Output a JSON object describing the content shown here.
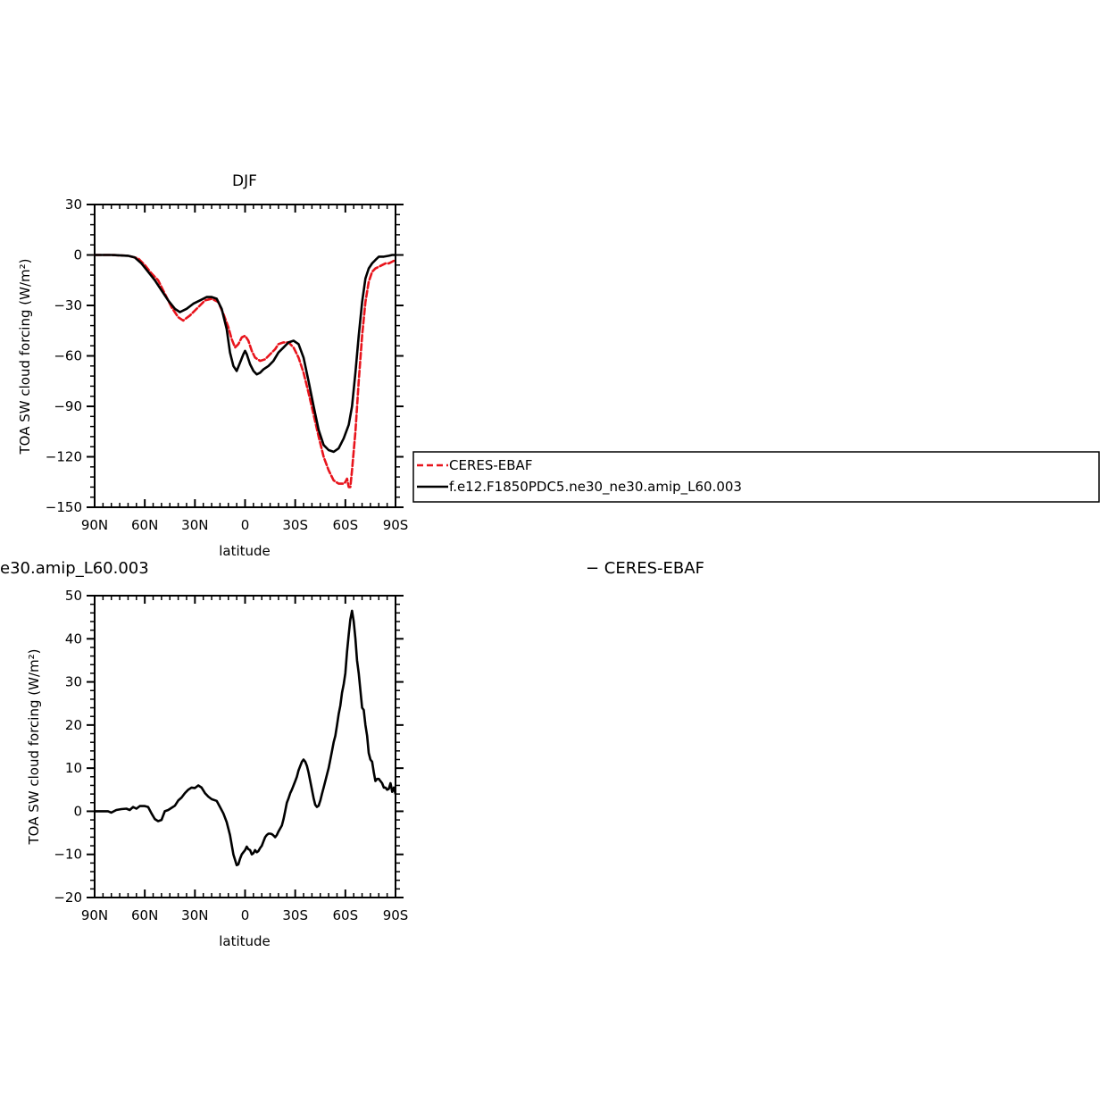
{
  "chart_data": [
    {
      "type": "line",
      "title": "DJF",
      "xlabel": "latitude",
      "ylabel": "TOA SW cloud forcing (W/m²)",
      "xlim": [
        -90,
        90
      ],
      "ylim": [
        -150,
        30
      ],
      "x_ticks": [
        -90,
        -60,
        -30,
        0,
        30,
        60,
        90
      ],
      "x_tick_labels": [
        "90N",
        "60N",
        "30N",
        "0",
        "30S",
        "60S",
        "90S"
      ],
      "y_ticks": [
        -150,
        -120,
        -90,
        -60,
        -30,
        0,
        30
      ],
      "y_tick_labels": [
        "−150",
        "−120",
        "−90",
        "−60",
        "−30",
        "0",
        "30"
      ],
      "legend": {
        "placement": "right"
      },
      "series": [
        {
          "name": "CERES-EBAF",
          "color": "#e8141c",
          "dash": "dashed",
          "points": [
            [
              -90,
              0
            ],
            [
              -80,
              0
            ],
            [
              -70,
              -0.5
            ],
            [
              -64,
              -2
            ],
            [
              -60,
              -6
            ],
            [
              -56,
              -11
            ],
            [
              -52,
              -15
            ],
            [
              -48,
              -23
            ],
            [
              -44,
              -31
            ],
            [
              -40,
              -37
            ],
            [
              -37,
              -39
            ],
            [
              -33,
              -36
            ],
            [
              -28,
              -31
            ],
            [
              -24,
              -27
            ],
            [
              -20,
              -26
            ],
            [
              -16,
              -28
            ],
            [
              -13,
              -35
            ],
            [
              -10,
              -43
            ],
            [
              -8,
              -50
            ],
            [
              -6,
              -55
            ],
            [
              -4,
              -53
            ],
            [
              -2,
              -49
            ],
            [
              0,
              -48
            ],
            [
              2,
              -51
            ],
            [
              4,
              -57
            ],
            [
              6,
              -61
            ],
            [
              9,
              -63
            ],
            [
              12,
              -62
            ],
            [
              15,
              -59
            ],
            [
              18,
              -56
            ],
            [
              20,
              -53
            ],
            [
              23,
              -52
            ],
            [
              26,
              -52
            ],
            [
              29,
              -55
            ],
            [
              32,
              -61
            ],
            [
              35,
              -70
            ],
            [
              38,
              -82
            ],
            [
              41,
              -95
            ],
            [
              44,
              -108
            ],
            [
              47,
              -120
            ],
            [
              50,
              -128
            ],
            [
              53,
              -134
            ],
            [
              56,
              -136
            ],
            [
              59,
              -136
            ],
            [
              60,
              -135
            ],
            [
              61,
              -133
            ],
            [
              62,
              -138
            ],
            [
              63,
              -138
            ],
            [
              64,
              -128
            ],
            [
              66,
              -105
            ],
            [
              68,
              -75
            ],
            [
              70,
              -48
            ],
            [
              72,
              -28
            ],
            [
              74,
              -16
            ],
            [
              76,
              -10
            ],
            [
              78,
              -8
            ],
            [
              80,
              -7
            ],
            [
              82,
              -6
            ],
            [
              84,
              -5
            ],
            [
              86,
              -5
            ],
            [
              88,
              -4
            ],
            [
              90,
              -3
            ]
          ]
        },
        {
          "name": "f.e12.F1850PDC5.ne30_ne30.amip_L60.003",
          "color": "#000000",
          "dash": "solid",
          "points": [
            [
              -90,
              0
            ],
            [
              -80,
              0
            ],
            [
              -70,
              -0.5
            ],
            [
              -66,
              -1.5
            ],
            [
              -62,
              -5
            ],
            [
              -58,
              -10
            ],
            [
              -54,
              -15
            ],
            [
              -50,
              -21
            ],
            [
              -46,
              -27
            ],
            [
              -42,
              -32
            ],
            [
              -39,
              -34
            ],
            [
              -35,
              -32
            ],
            [
              -31,
              -29
            ],
            [
              -27,
              -27
            ],
            [
              -23,
              -25
            ],
            [
              -20,
              -25
            ],
            [
              -17,
              -26
            ],
            [
              -14,
              -32
            ],
            [
              -11,
              -44
            ],
            [
              -9,
              -58
            ],
            [
              -7,
              -66
            ],
            [
              -5,
              -69
            ],
            [
              -3,
              -64
            ],
            [
              -1,
              -59
            ],
            [
              0,
              -57
            ],
            [
              1,
              -59
            ],
            [
              3,
              -65
            ],
            [
              5,
              -69
            ],
            [
              7,
              -71
            ],
            [
              9,
              -70
            ],
            [
              11,
              -68
            ],
            [
              14,
              -66
            ],
            [
              17,
              -63
            ],
            [
              20,
              -58
            ],
            [
              23,
              -55
            ],
            [
              26,
              -52
            ],
            [
              29,
              -51
            ],
            [
              32,
              -53
            ],
            [
              35,
              -61
            ],
            [
              38,
              -75
            ],
            [
              41,
              -90
            ],
            [
              44,
              -104
            ],
            [
              47,
              -113
            ],
            [
              50,
              -116
            ],
            [
              53,
              -117
            ],
            [
              56,
              -115
            ],
            [
              59,
              -109
            ],
            [
              62,
              -101
            ],
            [
              64,
              -90
            ],
            [
              66,
              -70
            ],
            [
              68,
              -48
            ],
            [
              70,
              -28
            ],
            [
              72,
              -14
            ],
            [
              74,
              -8
            ],
            [
              76,
              -5
            ],
            [
              78,
              -3
            ],
            [
              80,
              -1
            ],
            [
              83,
              -1
            ],
            [
              86,
              -0.5
            ],
            [
              88,
              0
            ],
            [
              90,
              0
            ]
          ]
        }
      ]
    },
    {
      "type": "line",
      "title": "e30.amip_L60.003",
      "title_right": "− CERES-EBAF",
      "xlabel": "latitude",
      "ylabel": "TOA SW cloud forcing (W/m²)",
      "xlim": [
        -90,
        90
      ],
      "ylim": [
        -20,
        50
      ],
      "x_ticks": [
        -90,
        -60,
        -30,
        0,
        30,
        60,
        90
      ],
      "x_tick_labels": [
        "90N",
        "60N",
        "30N",
        "0",
        "30S",
        "60S",
        "90S"
      ],
      "y_ticks": [
        -20,
        -10,
        0,
        10,
        20,
        30,
        40,
        50
      ],
      "y_tick_labels": [
        "−20",
        "−10",
        "0",
        "10",
        "20",
        "30",
        "40",
        "50"
      ],
      "series": [
        {
          "color": "#000000",
          "dash": "solid",
          "points": [
            [
              -90,
              0
            ],
            [
              -85,
              0
            ],
            [
              -82,
              0
            ],
            [
              -80,
              -0.3
            ],
            [
              -77,
              0.3
            ],
            [
              -74,
              0.5
            ],
            [
              -71,
              0.6
            ],
            [
              -69,
              0.3
            ],
            [
              -67,
              1
            ],
            [
              -65,
              0.6
            ],
            [
              -63,
              1.2
            ],
            [
              -60,
              1.2
            ],
            [
              -58,
              1
            ],
            [
              -56,
              -0.5
            ],
            [
              -54,
              -1.8
            ],
            [
              -52,
              -2.3
            ],
            [
              -50,
              -2
            ],
            [
              -48,
              0
            ],
            [
              -46,
              0.3
            ],
            [
              -44,
              0.8
            ],
            [
              -42,
              1.3
            ],
            [
              -40,
              2.5
            ],
            [
              -38,
              3.2
            ],
            [
              -36,
              4.2
            ],
            [
              -34,
              5
            ],
            [
              -32,
              5.5
            ],
            [
              -30,
              5.4
            ],
            [
              -28,
              6
            ],
            [
              -26,
              5.5
            ],
            [
              -24,
              4.2
            ],
            [
              -22,
              3.4
            ],
            [
              -20,
              2.8
            ],
            [
              -17,
              2.4
            ],
            [
              -15,
              1
            ],
            [
              -13,
              -0.5
            ],
            [
              -11,
              -2.5
            ],
            [
              -9,
              -5.5
            ],
            [
              -7,
              -10
            ],
            [
              -5,
              -12.5
            ],
            [
              -4,
              -12.3
            ],
            [
              -3,
              -11
            ],
            [
              -2,
              -10
            ],
            [
              -1,
              -9.5
            ],
            [
              0,
              -9
            ],
            [
              1,
              -8.2
            ],
            [
              2,
              -8.8
            ],
            [
              3,
              -9
            ],
            [
              4,
              -10
            ],
            [
              5,
              -9.7
            ],
            [
              6,
              -9
            ],
            [
              7,
              -9.5
            ],
            [
              8,
              -9.2
            ],
            [
              9,
              -8.5
            ],
            [
              10,
              -8
            ],
            [
              11,
              -7
            ],
            [
              12,
              -6
            ],
            [
              13,
              -5.5
            ],
            [
              14,
              -5.2
            ],
            [
              15,
              -5.2
            ],
            [
              16,
              -5.3
            ],
            [
              17,
              -5.6
            ],
            [
              18,
              -6
            ],
            [
              19,
              -5.5
            ],
            [
              20,
              -4.7
            ],
            [
              21,
              -4
            ],
            [
              22,
              -3.3
            ],
            [
              23,
              -1.8
            ],
            [
              24,
              0
            ],
            [
              25,
              2
            ],
            [
              26,
              3
            ],
            [
              27,
              4.2
            ],
            [
              28,
              5
            ],
            [
              29,
              6
            ],
            [
              30,
              7
            ],
            [
              31,
              8
            ],
            [
              32,
              9.5
            ],
            [
              33,
              10.5
            ],
            [
              34,
              11.5
            ],
            [
              35,
              12
            ],
            [
              36,
              11.5
            ],
            [
              37,
              10.5
            ],
            [
              38,
              9
            ],
            [
              39,
              7
            ],
            [
              40,
              5
            ],
            [
              41,
              3
            ],
            [
              42,
              1.5
            ],
            [
              43,
              1
            ],
            [
              44,
              1.3
            ],
            [
              45,
              2.5
            ],
            [
              46,
              4
            ],
            [
              47,
              5.5
            ],
            [
              48,
              7
            ],
            [
              49,
              8.5
            ],
            [
              50,
              10
            ],
            [
              51,
              12
            ],
            [
              52,
              14
            ],
            [
              53,
              16
            ],
            [
              54,
              17.5
            ],
            [
              55,
              20
            ],
            [
              56,
              22.5
            ],
            [
              57,
              24.5
            ],
            [
              58,
              27.5
            ],
            [
              59,
              29.5
            ],
            [
              60,
              32
            ],
            [
              61,
              37
            ],
            [
              62,
              41
            ],
            [
              63,
              44.5
            ],
            [
              64,
              46.5
            ],
            [
              65,
              44
            ],
            [
              66,
              40
            ],
            [
              67,
              35
            ],
            [
              68,
              32
            ],
            [
              69,
              28
            ],
            [
              70,
              24
            ],
            [
              71,
              23.5
            ],
            [
              72,
              20
            ],
            [
              73,
              17.5
            ],
            [
              74,
              13.5
            ],
            [
              75,
              12
            ],
            [
              76,
              11.5
            ],
            [
              77,
              9
            ],
            [
              78,
              7
            ],
            [
              79,
              7.5
            ],
            [
              80,
              7.5
            ],
            [
              81,
              7
            ],
            [
              82,
              6.5
            ],
            [
              83,
              5.5
            ],
            [
              84,
              5.5
            ],
            [
              85,
              5
            ],
            [
              86,
              5.2
            ],
            [
              87,
              6.5
            ],
            [
              88,
              4.5
            ],
            [
              89,
              5.5
            ],
            [
              90,
              4
            ]
          ]
        }
      ]
    }
  ]
}
